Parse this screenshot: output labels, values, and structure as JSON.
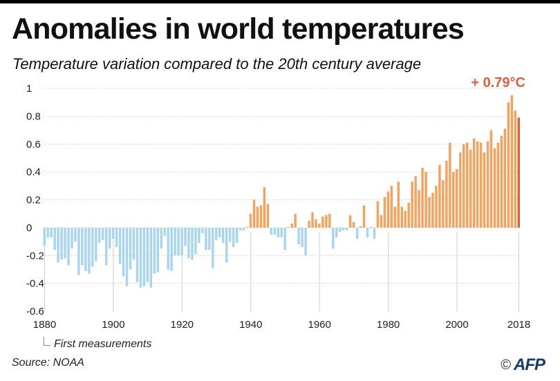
{
  "header": {
    "title": "Anomalies in world temperatures",
    "subtitle": "Temperature variation compared to the 20th century average"
  },
  "footer": {
    "note": "First measurements",
    "source": "Source: NOAA",
    "copyright_symbol": "©",
    "agency": "AFP"
  },
  "colors": {
    "negative": "#a9d6ee",
    "positive": "#f4a35f",
    "highlight": "#d9623b",
    "grid": "#cccccc"
  },
  "chart_data": {
    "type": "bar",
    "xlim": [
      1880,
      2018
    ],
    "ylim": [
      -0.6,
      1.0
    ],
    "yticks": [
      1,
      0.8,
      0.6,
      0.4,
      0.2,
      0,
      -0.2,
      -0.4,
      -0.6
    ],
    "ytick_labels": [
      "1",
      "0.8",
      "0.6",
      "0.4",
      "0.2",
      "0",
      "-0.2",
      "-0.4",
      "-0.6"
    ],
    "xticks": [
      1880,
      1900,
      1920,
      1940,
      1960,
      1980,
      2000,
      2018
    ],
    "xtick_labels": [
      "1880",
      "1900",
      "1920",
      "1940",
      "1960",
      "1980",
      "2000",
      "2018"
    ],
    "grid": "horizontal dotted",
    "annotation": {
      "label": "+ 0.79°C",
      "year": 2018,
      "value": 0.79
    },
    "years": [
      1880,
      1881,
      1882,
      1883,
      1884,
      1885,
      1886,
      1887,
      1888,
      1889,
      1890,
      1891,
      1892,
      1893,
      1894,
      1895,
      1896,
      1897,
      1898,
      1899,
      1900,
      1901,
      1902,
      1903,
      1904,
      1905,
      1906,
      1907,
      1908,
      1909,
      1910,
      1911,
      1912,
      1913,
      1914,
      1915,
      1916,
      1917,
      1918,
      1919,
      1920,
      1921,
      1922,
      1923,
      1924,
      1925,
      1926,
      1927,
      1928,
      1929,
      1930,
      1931,
      1932,
      1933,
      1934,
      1935,
      1936,
      1937,
      1938,
      1939,
      1940,
      1941,
      1942,
      1943,
      1944,
      1945,
      1946,
      1947,
      1948,
      1949,
      1950,
      1951,
      1952,
      1953,
      1954,
      1955,
      1956,
      1957,
      1958,
      1959,
      1960,
      1961,
      1962,
      1963,
      1964,
      1965,
      1966,
      1967,
      1968,
      1969,
      1970,
      1971,
      1972,
      1973,
      1974,
      1975,
      1976,
      1977,
      1978,
      1979,
      1980,
      1981,
      1982,
      1983,
      1984,
      1985,
      1986,
      1987,
      1988,
      1989,
      1990,
      1991,
      1992,
      1993,
      1994,
      1995,
      1996,
      1997,
      1998,
      1999,
      2000,
      2001,
      2002,
      2003,
      2004,
      2005,
      2006,
      2007,
      2008,
      2009,
      2010,
      2011,
      2012,
      2013,
      2014,
      2015,
      2016,
      2017,
      2018
    ],
    "values": [
      -0.13,
      -0.07,
      -0.07,
      -0.16,
      -0.25,
      -0.23,
      -0.22,
      -0.27,
      -0.15,
      -0.1,
      -0.34,
      -0.27,
      -0.31,
      -0.33,
      -0.28,
      -0.24,
      -0.11,
      -0.09,
      -0.27,
      -0.15,
      -0.08,
      -0.14,
      -0.26,
      -0.35,
      -0.42,
      -0.3,
      -0.23,
      -0.39,
      -0.43,
      -0.42,
      -0.39,
      -0.43,
      -0.33,
      -0.32,
      -0.15,
      -0.06,
      -0.3,
      -0.31,
      -0.2,
      -0.2,
      -0.2,
      -0.13,
      -0.22,
      -0.23,
      -0.19,
      -0.11,
      -0.04,
      -0.16,
      -0.16,
      -0.29,
      -0.09,
      -0.07,
      -0.11,
      -0.25,
      -0.1,
      -0.14,
      -0.11,
      -0.02,
      -0.02,
      0.0,
      0.1,
      0.2,
      0.15,
      0.16,
      0.29,
      0.17,
      -0.05,
      -0.05,
      -0.07,
      -0.07,
      -0.16,
      0.0,
      0.03,
      0.1,
      -0.12,
      -0.14,
      -0.2,
      0.05,
      0.11,
      0.06,
      0.03,
      0.08,
      0.09,
      0.1,
      -0.15,
      -0.07,
      -0.03,
      -0.02,
      -0.02,
      0.09,
      0.04,
      -0.08,
      0.01,
      0.16,
      -0.07,
      0.0,
      -0.08,
      0.19,
      0.09,
      0.22,
      0.26,
      0.3,
      0.15,
      0.33,
      0.15,
      0.12,
      0.18,
      0.33,
      0.37,
      0.27,
      0.43,
      0.4,
      0.22,
      0.25,
      0.3,
      0.45,
      0.34,
      0.48,
      0.61,
      0.4,
      0.42,
      0.54,
      0.6,
      0.61,
      0.56,
      0.64,
      0.62,
      0.61,
      0.54,
      0.62,
      0.7,
      0.57,
      0.61,
      0.66,
      0.71,
      0.9,
      0.95,
      0.84,
      0.79
    ]
  }
}
